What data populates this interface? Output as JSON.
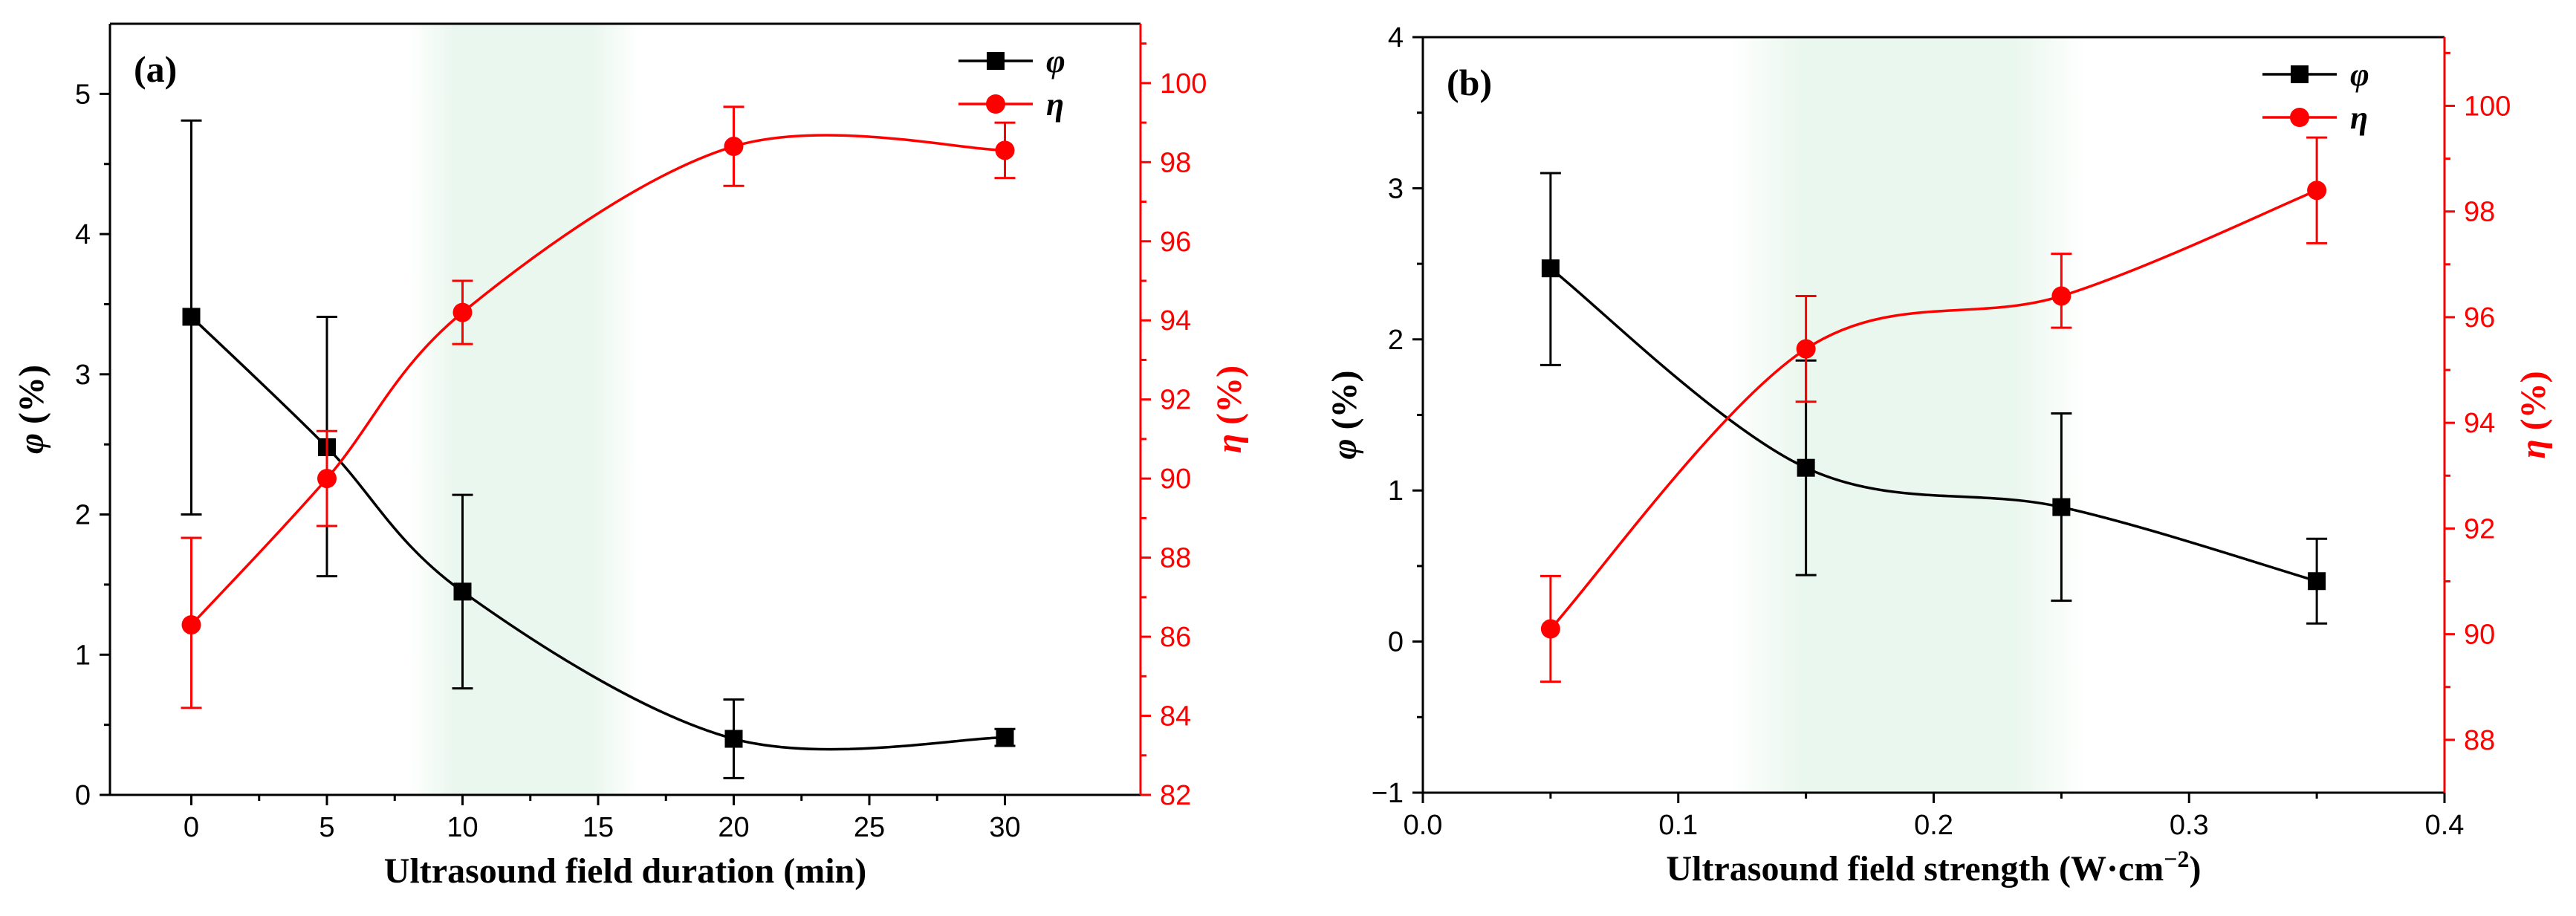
{
  "colors": {
    "phi": "#000000",
    "eta": "#ff0000",
    "highlight": "#e8f6ec"
  },
  "chart_data": [
    {
      "type": "line",
      "panel_label": "(a)",
      "xlabel": "Ultrasound field duration (min)",
      "ylabel_left": {
        "symbol": "φ",
        "unit": " (%)"
      },
      "ylabel_right": {
        "symbol": "η",
        "unit": " (%)"
      },
      "xlim": [
        -3,
        35
      ],
      "ylim_left": [
        0,
        5.5
      ],
      "ylim_right": [
        82,
        101.5
      ],
      "xticks": [
        0,
        5,
        10,
        15,
        20,
        25,
        30
      ],
      "xtick_labels": [
        "0",
        "5",
        "10",
        "15",
        "20",
        "25",
        "30"
      ],
      "yticks_left": [
        0,
        1,
        2,
        3,
        4,
        5
      ],
      "ytick_labels_left": [
        "0",
        "1",
        "2",
        "3",
        "4",
        "5"
      ],
      "yticks_right": [
        82,
        84,
        86,
        88,
        90,
        92,
        94,
        96,
        98,
        100
      ],
      "ytick_labels_right": [
        "82",
        "84",
        "86",
        "88",
        "90",
        "92",
        "94",
        "96",
        "98",
        "100"
      ],
      "highlight_x": [
        8,
        16.5
      ],
      "series": [
        {
          "name": "φ",
          "axis": "left",
          "marker": "square",
          "color_key": "phi",
          "x": [
            0,
            5,
            10,
            20,
            30
          ],
          "values": [
            3.41,
            2.48,
            1.45,
            0.4,
            0.41
          ],
          "err_lower": [
            1.41,
            0.92,
            0.69,
            0.28,
            0.06
          ],
          "err_upper": [
            1.4,
            0.93,
            0.69,
            0.28,
            0.06
          ]
        },
        {
          "name": "η",
          "axis": "right",
          "marker": "circle",
          "color_key": "eta",
          "x": [
            0,
            5,
            10,
            20,
            30
          ],
          "values": [
            86.3,
            90.0,
            94.2,
            98.4,
            98.3
          ],
          "err_lower": [
            2.1,
            1.2,
            0.8,
            1.0,
            0.7
          ],
          "err_upper": [
            2.2,
            1.2,
            0.8,
            1.0,
            0.7
          ]
        }
      ],
      "legend": [
        {
          "label": "φ",
          "color_key": "phi",
          "marker": "square"
        },
        {
          "label": "η",
          "color_key": "eta",
          "marker": "circle"
        }
      ]
    },
    {
      "type": "line",
      "panel_label": "(b)",
      "xlabel": "Ultrasound field strength (W·cm",
      "xlabel_sup": "−2",
      "xlabel_end": ")",
      "ylabel_left": {
        "symbol": "φ",
        "unit": " (%)"
      },
      "ylabel_right": {
        "symbol": "η",
        "unit": " (%)"
      },
      "xlim": [
        0.0,
        0.4
      ],
      "ylim_left": [
        -1,
        4
      ],
      "ylim_right": [
        87,
        101.3
      ],
      "xticks": [
        0.0,
        0.1,
        0.2,
        0.3,
        0.4
      ],
      "xtick_labels": [
        "0.0",
        "0.1",
        "0.2",
        "0.3",
        "0.4"
      ],
      "yticks_left": [
        -1,
        0,
        1,
        2,
        3,
        4
      ],
      "ytick_labels_left": [
        "−1",
        "0",
        "1",
        "2",
        "3",
        "4"
      ],
      "yticks_right": [
        88,
        90,
        92,
        94,
        96,
        98,
        100
      ],
      "ytick_labels_right": [
        "88",
        "90",
        "92",
        "94",
        "96",
        "98",
        "100"
      ],
      "highlight_x": [
        0.12,
        0.26
      ],
      "series": [
        {
          "name": "φ",
          "axis": "left",
          "marker": "square",
          "color_key": "phi",
          "x": [
            0.05,
            0.15,
            0.25,
            0.35
          ],
          "values": [
            2.47,
            1.15,
            0.89,
            0.4
          ],
          "err_lower": [
            0.64,
            0.71,
            0.62,
            0.28
          ],
          "err_upper": [
            0.63,
            0.71,
            0.62,
            0.28
          ]
        },
        {
          "name": "η",
          "axis": "right",
          "marker": "circle",
          "color_key": "eta",
          "x": [
            0.05,
            0.15,
            0.25,
            0.35
          ],
          "values": [
            90.1,
            95.4,
            96.4,
            98.4
          ],
          "err_lower": [
            1.0,
            1.0,
            0.6,
            1.0
          ],
          "err_upper": [
            1.0,
            1.0,
            0.8,
            1.0
          ]
        }
      ],
      "legend": [
        {
          "label": "φ",
          "color_key": "phi",
          "marker": "square"
        },
        {
          "label": "η",
          "color_key": "eta",
          "marker": "circle"
        }
      ]
    }
  ]
}
